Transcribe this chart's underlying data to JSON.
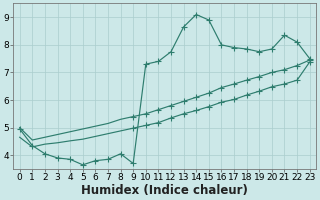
{
  "xlabel": "Humidex (Indice chaleur)",
  "x": [
    0,
    1,
    2,
    3,
    4,
    5,
    6,
    7,
    8,
    9,
    10,
    11,
    12,
    13,
    14,
    15,
    16,
    17,
    18,
    19,
    20,
    21,
    22,
    23
  ],
  "y_main": [
    4.95,
    4.35,
    4.05,
    3.9,
    3.85,
    3.65,
    3.8,
    3.85,
    4.05,
    3.7,
    7.3,
    7.4,
    7.75,
    8.65,
    9.1,
    8.9,
    8.0,
    7.9,
    7.85,
    7.75,
    7.85,
    8.35,
    8.1,
    7.5
  ],
  "y_upper": [
    5.0,
    4.55,
    4.65,
    4.75,
    4.85,
    4.95,
    5.05,
    5.15,
    5.3,
    5.4,
    5.5,
    5.65,
    5.8,
    5.95,
    6.1,
    6.25,
    6.45,
    6.58,
    6.72,
    6.85,
    7.0,
    7.1,
    7.25,
    7.45
  ],
  "y_lower": [
    4.65,
    4.3,
    4.4,
    4.45,
    4.52,
    4.58,
    4.68,
    4.78,
    4.88,
    4.98,
    5.08,
    5.18,
    5.35,
    5.5,
    5.62,
    5.76,
    5.92,
    6.02,
    6.18,
    6.32,
    6.48,
    6.58,
    6.72,
    7.38
  ],
  "line_color": "#2e7d6e",
  "bg_color": "#cce8e8",
  "grid_color": "#aacece",
  "xlim": [
    0,
    23
  ],
  "ylim": [
    3.5,
    9.5
  ],
  "yticks": [
    4,
    5,
    6,
    7,
    8,
    9
  ],
  "xticks": [
    0,
    1,
    2,
    3,
    4,
    5,
    6,
    7,
    8,
    9,
    10,
    11,
    12,
    13,
    14,
    15,
    16,
    17,
    18,
    19,
    20,
    21,
    22,
    23
  ],
  "tick_fontsize": 6.5,
  "xlabel_fontsize": 8.5,
  "markersize": 2.0
}
